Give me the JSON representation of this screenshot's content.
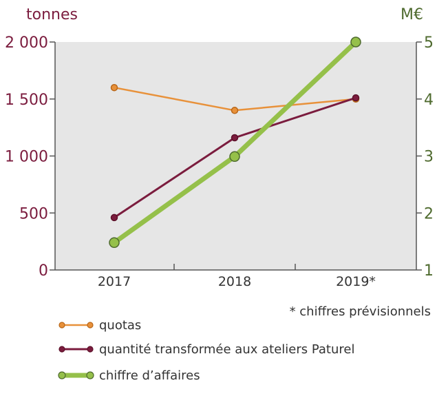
{
  "chart_data": {
    "type": "line",
    "title": "",
    "categories": [
      "2017",
      "2018",
      "2019*"
    ],
    "y_left": {
      "unit": "tonnes",
      "ylim": [
        0,
        2000
      ],
      "ticks": [
        "0",
        "500",
        "1 000",
        "1 500",
        "2 000"
      ]
    },
    "y_right": {
      "unit": "M€",
      "ylim": [
        1,
        5
      ],
      "ticks": [
        "1",
        "2",
        "3",
        "4",
        "5"
      ]
    },
    "series": [
      {
        "name": "quotas",
        "axis": "left",
        "values": [
          1600,
          1400,
          1500
        ],
        "color": "#e8913a"
      },
      {
        "name": "quantité transformée aux ateliers Paturel",
        "axis": "left",
        "values": [
          460,
          1160,
          1510
        ],
        "color": "#7b1c3e"
      },
      {
        "name": "chiffre d’affaires",
        "axis": "right",
        "values": [
          1.48,
          2.99,
          5.0
        ],
        "color": "#95c04a"
      }
    ],
    "footnote": "* chiffres prévisionnels",
    "grid": false,
    "background": "#e6e6e6",
    "legend_position": "bottom-left"
  }
}
